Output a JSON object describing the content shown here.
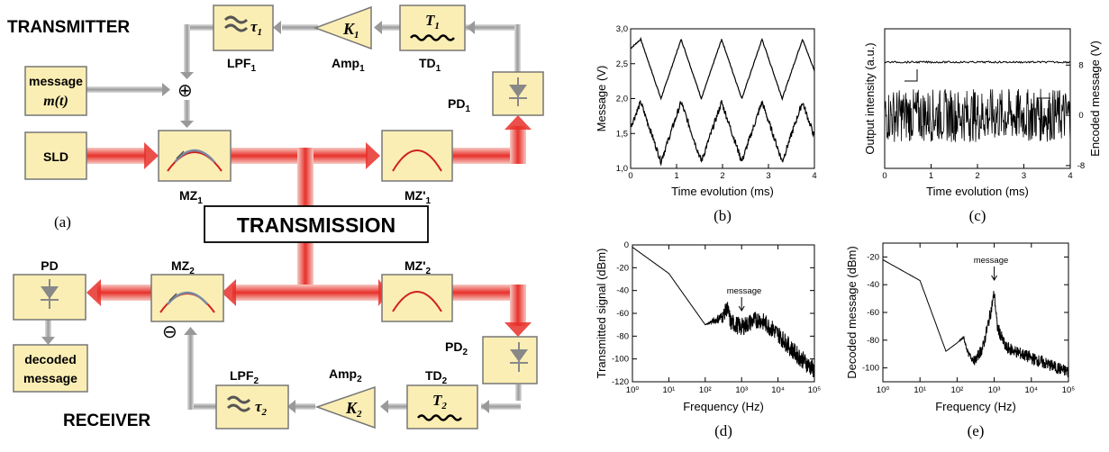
{
  "diagram": {
    "transmitter_label": "TRANSMITTER",
    "receiver_label": "RECEIVER",
    "transmission_label": "TRANSMISSION",
    "panel_a": "(a)",
    "sld": "SLD",
    "message_line1": "message",
    "message_line2": "m(t)",
    "decoded_line1": "decoded",
    "decoded_line2": "message",
    "lpf1": "LPF",
    "lpf1_sub": "1",
    "tau1": "τ",
    "tau1_sub": "1",
    "amp1": "Amp",
    "amp1_sub": "1",
    "k1": "K",
    "k1_sub": "1",
    "td1": "TD",
    "td1_sub": "1",
    "t1": "T",
    "t1_sub": "1",
    "pd1": "PD",
    "pd1_sub": "1",
    "mz1": "MZ",
    "mz1_sub": "1",
    "mz1p": "MZ'",
    "mz1p_sub": "1",
    "mz2": "MZ",
    "mz2_sub": "2",
    "mz2p": "MZ'",
    "mz2p_sub": "2",
    "pd": "PD",
    "pd2": "PD",
    "pd2_sub": "2",
    "lpf2": "LPF",
    "lpf2_sub": "2",
    "tau2": "τ",
    "tau2_sub": "2",
    "amp2": "Amp",
    "amp2_sub": "2",
    "k2": "K",
    "k2_sub": "2",
    "td2": "TD",
    "td2_sub": "2",
    "t2": "T",
    "t2_sub": "2",
    "plus_symbol": "⊕",
    "minus_symbol": "⊖",
    "colors": {
      "box": "#fbeeb4",
      "beam": "#e8302a",
      "gray_arrow": "#a9a9a9"
    }
  },
  "chart_data": [
    {
      "panel": "(b)",
      "type": "line",
      "xlabel": "Time evolution (ms)",
      "ylabel": "Message (V)",
      "xlim": [
        0,
        4
      ],
      "ylim": [
        1.0,
        3.0
      ],
      "xticks": [
        "0",
        "1",
        "2",
        "3",
        "4"
      ],
      "yticks": [
        "1,0",
        "1,5",
        "2,0",
        "2,5",
        "3,0"
      ],
      "series": [
        {
          "x": [
            0,
            0.22,
            0.66,
            1.1,
            1.54,
            1.98,
            2.42,
            2.86,
            3.3,
            3.74,
            4.0
          ],
          "values": [
            2.72,
            2.85,
            2.0,
            2.85,
            2.0,
            2.85,
            2.0,
            2.85,
            2.0,
            2.85,
            2.4
          ]
        },
        {
          "x": [
            0,
            0.22,
            0.66,
            1.1,
            1.54,
            1.98,
            2.42,
            2.86,
            3.3,
            3.74,
            4.0
          ],
          "values": [
            1.6,
            1.95,
            1.1,
            1.95,
            1.1,
            1.95,
            1.1,
            1.95,
            1.1,
            1.95,
            1.45
          ]
        }
      ]
    },
    {
      "panel": "(c)",
      "type": "line",
      "xlabel": "Time evolution (ms)",
      "ylabel": "Output intensity (a.u.)",
      "ylabel_right": "Encoded message (V)",
      "xlim": [
        0,
        4
      ],
      "ylim_right": [
        -8,
        8
      ],
      "xticks": [
        "0",
        "1",
        "2",
        "3",
        "4"
      ],
      "yticks_right": [
        "8",
        "0",
        "-8"
      ],
      "series": [
        {
          "axis": "left",
          "values": "flat trace near top"
        },
        {
          "axis": "right",
          "x": [
            0,
            4
          ],
          "values": [
            0,
            0
          ],
          "range": [
            -4.5,
            4
          ]
        }
      ]
    },
    {
      "panel": "(d)",
      "type": "line",
      "xlabel": "Frequency (Hz)",
      "ylabel": "Transmitted signal (dBm)",
      "xscale": "log",
      "xlim": [
        1,
        100000
      ],
      "ylim": [
        -120,
        0
      ],
      "xticks": [
        "10⁰",
        "10¹",
        "10²",
        "10³",
        "10⁴",
        "10⁵"
      ],
      "yticks": [
        "0",
        "-20",
        "-40",
        "-60",
        "-80",
        "-100",
        "-120"
      ],
      "annotation": "message",
      "series": [
        {
          "x": [
            1,
            10,
            100,
            300,
            400,
            500,
            1000,
            2000,
            3000,
            5000,
            10000,
            30000,
            100000
          ],
          "values": [
            -2,
            -25,
            -70,
            -63,
            -55,
            -68,
            -72,
            -67,
            -65,
            -70,
            -78,
            -95,
            -110
          ]
        }
      ]
    },
    {
      "panel": "(e)",
      "type": "line",
      "xlabel": "Frequency (Hz)",
      "ylabel": "Decoded message (dBm)",
      "xscale": "log",
      "xlim": [
        1,
        100000
      ],
      "ylim": [
        -110,
        -10
      ],
      "xticks": [
        "10⁰",
        "10¹",
        "10²",
        "10³",
        "10⁴",
        "10⁵"
      ],
      "yticks": [
        "-20",
        "-40",
        "-60",
        "-80",
        "-100"
      ],
      "annotation": "message",
      "series": [
        {
          "x": [
            1,
            10,
            50,
            100,
            150,
            200,
            300,
            500,
            800,
            1000,
            1200,
            2000,
            10000,
            100000
          ],
          "values": [
            -22,
            -37,
            -88,
            -82,
            -78,
            -90,
            -95,
            -85,
            -60,
            -46,
            -70,
            -85,
            -93,
            -103
          ]
        }
      ]
    }
  ]
}
